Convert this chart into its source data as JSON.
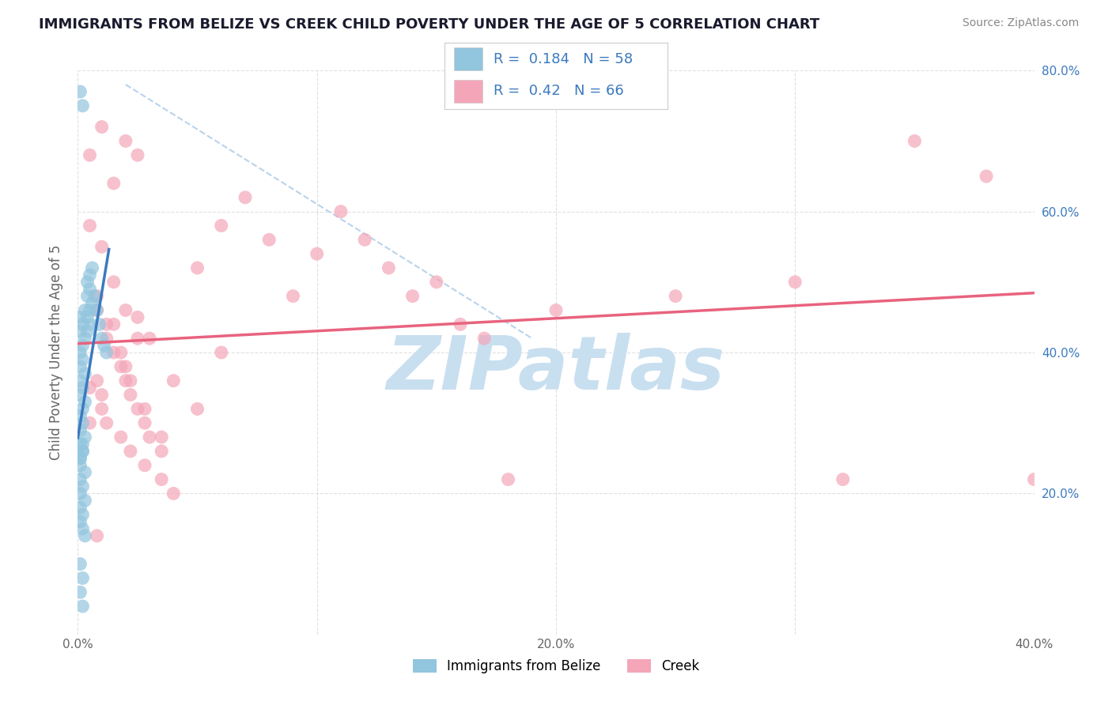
{
  "title": "IMMIGRANTS FROM BELIZE VS CREEK CHILD POVERTY UNDER THE AGE OF 5 CORRELATION CHART",
  "source": "Source: ZipAtlas.com",
  "ylabel": "Child Poverty Under the Age of 5",
  "xlim": [
    0.0,
    0.4
  ],
  "ylim": [
    0.0,
    0.8
  ],
  "xticks": [
    0.0,
    0.1,
    0.2,
    0.3,
    0.4
  ],
  "xticklabels": [
    "0.0%",
    "",
    "20.0%",
    "",
    "40.0%"
  ],
  "yticks_right": [
    0.2,
    0.4,
    0.6,
    0.8
  ],
  "yticklabels_right": [
    "20.0%",
    "40.0%",
    "60.0%",
    "80.0%"
  ],
  "blue_R": 0.184,
  "blue_N": 58,
  "pink_R": 0.42,
  "pink_N": 66,
  "blue_color": "#92c5de",
  "pink_color": "#f4a6b8",
  "blue_line_color": "#3b7abf",
  "pink_line_color": "#e8637e",
  "blue_dash_color": "#a8c8e8",
  "watermark": "ZIPatlas",
  "watermark_color": "#c8dff0",
  "background_color": "#ffffff",
  "legend_val_color": "#3b7abf",
  "legend_border_color": "#cccccc",
  "blue_points_x": [
    0.001,
    0.002,
    0.001,
    0.002,
    0.003,
    0.001,
    0.002,
    0.001,
    0.003,
    0.001,
    0.002,
    0.001,
    0.002,
    0.003,
    0.001,
    0.002,
    0.001,
    0.003,
    0.001,
    0.002,
    0.001,
    0.002,
    0.003,
    0.001,
    0.002,
    0.001,
    0.003,
    0.001,
    0.002,
    0.001,
    0.002,
    0.003,
    0.001,
    0.002,
    0.001,
    0.003,
    0.004,
    0.005,
    0.004,
    0.005,
    0.006,
    0.004,
    0.005,
    0.004,
    0.005,
    0.006,
    0.007,
    0.008,
    0.009,
    0.01,
    0.011,
    0.012,
    0.001,
    0.002,
    0.001,
    0.002,
    0.001,
    0.002
  ],
  "blue_points_y": [
    0.25,
    0.27,
    0.24,
    0.26,
    0.23,
    0.22,
    0.21,
    0.2,
    0.19,
    0.18,
    0.17,
    0.16,
    0.15,
    0.14,
    0.25,
    0.26,
    0.27,
    0.28,
    0.29,
    0.3,
    0.31,
    0.32,
    0.33,
    0.34,
    0.35,
    0.36,
    0.37,
    0.38,
    0.39,
    0.4,
    0.41,
    0.42,
    0.43,
    0.44,
    0.45,
    0.46,
    0.43,
    0.44,
    0.45,
    0.46,
    0.47,
    0.48,
    0.49,
    0.5,
    0.51,
    0.52,
    0.48,
    0.46,
    0.44,
    0.42,
    0.41,
    0.4,
    0.77,
    0.75,
    0.1,
    0.08,
    0.06,
    0.04
  ],
  "pink_points_x": [
    0.005,
    0.01,
    0.015,
    0.02,
    0.025,
    0.03,
    0.008,
    0.012,
    0.018,
    0.022,
    0.028,
    0.035,
    0.04,
    0.05,
    0.06,
    0.07,
    0.08,
    0.09,
    0.1,
    0.11,
    0.12,
    0.13,
    0.14,
    0.15,
    0.16,
    0.17,
    0.005,
    0.01,
    0.015,
    0.02,
    0.025,
    0.03,
    0.008,
    0.012,
    0.018,
    0.022,
    0.028,
    0.035,
    0.04,
    0.05,
    0.06,
    0.2,
    0.25,
    0.3,
    0.35,
    0.38,
    0.18,
    0.32,
    0.4,
    0.005,
    0.01,
    0.015,
    0.02,
    0.025,
    0.008,
    0.012,
    0.018,
    0.022,
    0.028,
    0.035,
    0.005,
    0.01,
    0.015,
    0.02,
    0.025,
    0.008
  ],
  "pink_points_y": [
    0.35,
    0.32,
    0.44,
    0.38,
    0.45,
    0.42,
    0.36,
    0.3,
    0.28,
    0.26,
    0.24,
    0.22,
    0.2,
    0.52,
    0.58,
    0.62,
    0.56,
    0.48,
    0.54,
    0.6,
    0.56,
    0.52,
    0.48,
    0.5,
    0.44,
    0.42,
    0.3,
    0.34,
    0.4,
    0.36,
    0.32,
    0.28,
    0.46,
    0.42,
    0.38,
    0.34,
    0.3,
    0.26,
    0.36,
    0.32,
    0.4,
    0.46,
    0.48,
    0.5,
    0.7,
    0.65,
    0.22,
    0.22,
    0.22,
    0.58,
    0.55,
    0.5,
    0.46,
    0.42,
    0.48,
    0.44,
    0.4,
    0.36,
    0.32,
    0.28,
    0.68,
    0.72,
    0.64,
    0.7,
    0.68,
    0.14
  ]
}
